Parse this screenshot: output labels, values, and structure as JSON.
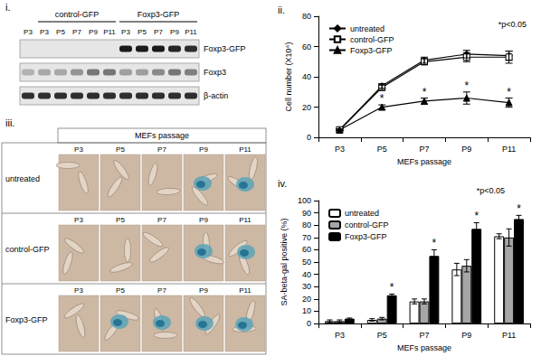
{
  "chart_data": [
    {
      "type": "line",
      "title": "ii.",
      "categories": [
        "P3",
        "P5",
        "P7",
        "P9",
        "P11"
      ],
      "x_label": "MEFs passage",
      "y_label": "Cell number (X10⁴)",
      "ylim": [
        0,
        80
      ],
      "yticks": [
        0,
        20,
        40,
        60,
        80
      ],
      "grid": false,
      "legend": "upper left",
      "series": [
        {
          "name": "untreated",
          "color": "#000000",
          "marker": "diamond",
          "values": [
            5,
            34,
            51,
            55,
            54
          ],
          "errors": [
            0.5,
            1.5,
            2,
            2.5,
            3
          ]
        },
        {
          "name": "control-GFP",
          "color": "#ffffff",
          "marker": "square",
          "values": [
            5,
            33,
            50,
            53,
            53
          ],
          "errors": [
            0.5,
            1.5,
            2,
            3,
            4
          ]
        },
        {
          "name": "Foxp3-GFP",
          "color": "#000000",
          "marker": "triangle",
          "values": [
            5,
            20,
            24,
            26,
            23
          ],
          "errors": [
            0.5,
            1.5,
            2,
            4,
            3
          ]
        }
      ],
      "annotations": [
        {
          "text": "*p<0.05"
        },
        {
          "text": "*",
          "x": "P5",
          "series": "Foxp3-GFP"
        },
        {
          "text": "*",
          "x": "P7",
          "series": "Foxp3-GFP"
        },
        {
          "text": "*",
          "x": "P9",
          "series": "Foxp3-GFP"
        },
        {
          "text": "*",
          "x": "P11",
          "series": "Foxp3-GFP"
        }
      ]
    },
    {
      "type": "bar",
      "title": "iv.",
      "categories": [
        "P3",
        "P5",
        "P7",
        "P9",
        "P11"
      ],
      "x_label": "MEFs passage",
      "y_label": "SA-beta-gal positive (%)",
      "ylim": [
        0,
        100
      ],
      "yticks": [
        0,
        10,
        20,
        30,
        40,
        50,
        60,
        70,
        80,
        90,
        100
      ],
      "grid": false,
      "legend": "upper left",
      "series": [
        {
          "name": "untreated",
          "color": "#ffffff",
          "values": [
            2,
            3,
            18,
            44,
            71
          ],
          "errors": [
            1,
            1,
            2,
            5,
            2
          ]
        },
        {
          "name": "control-GFP",
          "color": "#a6a6a6",
          "values": [
            2,
            4,
            18,
            47,
            70
          ],
          "errors": [
            1,
            1,
            2,
            5,
            7
          ]
        },
        {
          "name": "Foxp3-GFP",
          "color": "#000000",
          "values": [
            4,
            23,
            55,
            77,
            85
          ],
          "errors": [
            0.5,
            1,
            5,
            5,
            3
          ]
        }
      ],
      "annotations": [
        {
          "text": "*p<0.05"
        },
        {
          "text": "*",
          "x": "P5",
          "series": "Foxp3-GFP"
        },
        {
          "text": "*",
          "x": "P7",
          "series": "Foxp3-GFP"
        },
        {
          "text": "*",
          "x": "P9",
          "series": "Foxp3-GFP"
        },
        {
          "text": "*",
          "x": "P11",
          "series": "Foxp3-GFP"
        }
      ]
    }
  ],
  "blot": {
    "title": "i.",
    "lanes": [
      "P3",
      "P3",
      "P5",
      "P7",
      "P9",
      "P11",
      "P3",
      "P5",
      "P7",
      "P9",
      "P11"
    ],
    "groups": [
      {
        "label": "control-GFP",
        "first": 1,
        "last": 5
      },
      {
        "label": "Foxp3-GFP",
        "first": 6,
        "last": 10
      }
    ],
    "rows": [
      {
        "label": "Foxp3-GFP",
        "bands": [
          0,
          0,
          0,
          0,
          0,
          0,
          1,
          1,
          1,
          0.95,
          0.9
        ]
      },
      {
        "label": "Foxp3",
        "bands": [
          0.25,
          0.3,
          0.3,
          0.4,
          0.55,
          0.55,
          0.35,
          0.35,
          0.45,
          0.55,
          0.5
        ]
      },
      {
        "label": "β-actin",
        "bands": [
          0.9,
          0.9,
          0.9,
          0.9,
          0.9,
          0.9,
          0.9,
          0.9,
          0.9,
          0.9,
          0.9
        ]
      }
    ]
  },
  "images": {
    "title": "iii.",
    "header": "MEFs passage",
    "columns": [
      "P3",
      "P5",
      "P7",
      "P9",
      "P11"
    ],
    "rows": [
      {
        "label": "untreated",
        "stained": [
          false,
          false,
          false,
          true,
          true
        ]
      },
      {
        "label": "control-GFP",
        "stained": [
          false,
          false,
          false,
          true,
          true
        ]
      },
      {
        "label": "Foxp3-GFP",
        "stained": [
          false,
          true,
          true,
          true,
          true
        ]
      }
    ]
  }
}
